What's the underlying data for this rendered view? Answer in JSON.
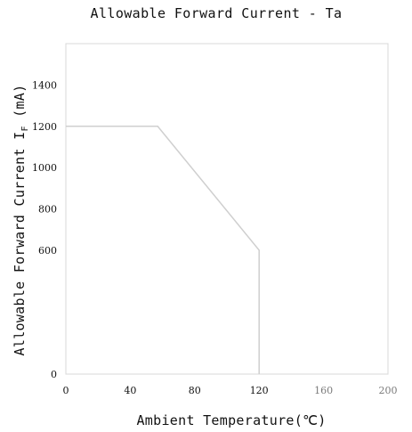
{
  "chart_data": {
    "type": "line",
    "title": "Allowable Forward Current - Ta",
    "xlabel": "Ambient Temperature(℃)",
    "ylabel": "Allowable Forward Current I F (mA)",
    "xlim": [
      0,
      200
    ],
    "ylim": [
      0,
      1600
    ],
    "x_ticks": [
      "0",
      "40",
      "80",
      "120",
      "160",
      "200"
    ],
    "y_ticks": [
      "0",
      "600",
      "800",
      "1000",
      "1200",
      "1400"
    ],
    "series": [
      {
        "x": [
          0,
          57,
          120,
          120
        ],
        "y": [
          1200,
          1200,
          600,
          0
        ]
      }
    ],
    "grid": false,
    "legend": "none",
    "colors": {
      "line": "#cfcfcf",
      "frame": "#d8d8d8",
      "text": "#111111"
    }
  }
}
